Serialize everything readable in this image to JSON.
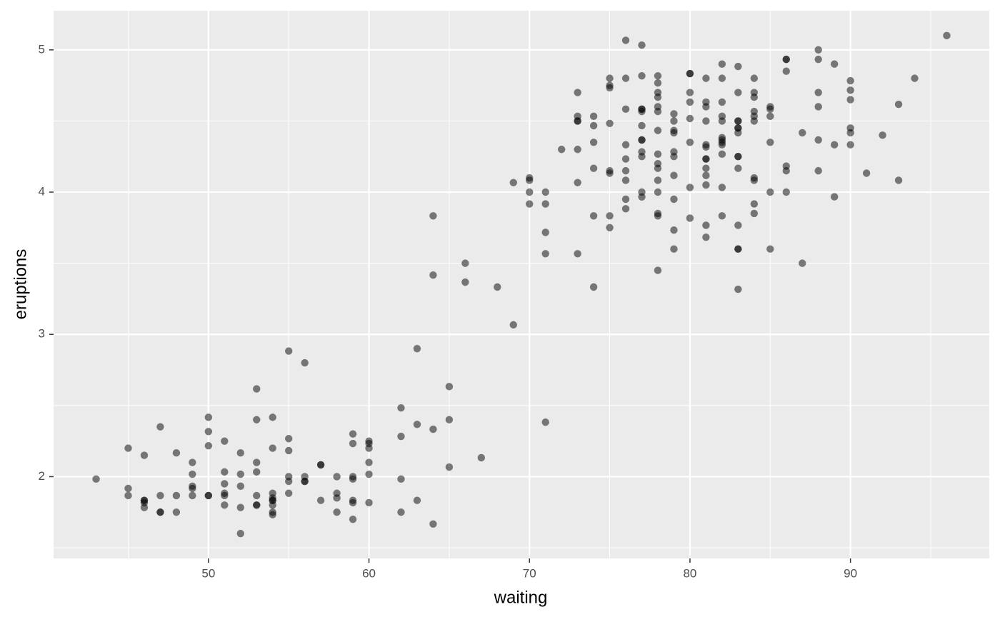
{
  "chart_data": {
    "type": "scatter",
    "x_label": "waiting",
    "y_label": "eruptions",
    "color": "#000000",
    "alpha": 0.5,
    "grid": true,
    "xlim": [
      40.35,
      98.65
    ],
    "ylim": [
      1.425,
      5.275
    ],
    "xticks": [
      50,
      60,
      70,
      80,
      90
    ],
    "yticks": [
      2,
      3,
      4,
      5
    ],
    "xminorticks": [
      45,
      55,
      65,
      75,
      85,
      95
    ],
    "yminorticks": [
      1.5,
      2.5,
      3.5,
      4.5
    ],
    "x": [
      79,
      54,
      74,
      62,
      85,
      55,
      88,
      85,
      51,
      85,
      54,
      84,
      78,
      47,
      83,
      52,
      62,
      84,
      52,
      79,
      51,
      47,
      78,
      69,
      74,
      83,
      55,
      76,
      78,
      79,
      73,
      77,
      66,
      80,
      74,
      52,
      48,
      80,
      59,
      90,
      80,
      58,
      84,
      58,
      73,
      83,
      64,
      53,
      82,
      59,
      75,
      90,
      54,
      80,
      54,
      83,
      71,
      64,
      77,
      81,
      59,
      84,
      48,
      82,
      60,
      92,
      78,
      78,
      65,
      73,
      82,
      56,
      79,
      71,
      62,
      76,
      60,
      78,
      76,
      83,
      75,
      82,
      70,
      65,
      73,
      88,
      76,
      80,
      48,
      86,
      60,
      90,
      50,
      78,
      63,
      72,
      84,
      75,
      51,
      82,
      62,
      88,
      49,
      83,
      81,
      47,
      84,
      52,
      86,
      81,
      75,
      59,
      89,
      79,
      59,
      81,
      50,
      85,
      59,
      87,
      53,
      69,
      77,
      56,
      88,
      81,
      45,
      82,
      55,
      90,
      45,
      83,
      56,
      89,
      46,
      82,
      51,
      86,
      53,
      79,
      81,
      60,
      82,
      77,
      76,
      59,
      80,
      49,
      96,
      53,
      77,
      77,
      65,
      81,
      71,
      70,
      81,
      93,
      53,
      89,
      45,
      86,
      58,
      78,
      66,
      76,
      63,
      88,
      52,
      93,
      49,
      57,
      77,
      68,
      81,
      81,
      73,
      50,
      85,
      74,
      55,
      77,
      83,
      83,
      51,
      78,
      84,
      46,
      83,
      55,
      81,
      57,
      76,
      84,
      77,
      81,
      87,
      77,
      51,
      78,
      60,
      82,
      91,
      53,
      78,
      46,
      77,
      84,
      49,
      83,
      71,
      80,
      49,
      75,
      64,
      76,
      53,
      94,
      55,
      76,
      50,
      82,
      54,
      75,
      78,
      79,
      78,
      78,
      70,
      79,
      70,
      54,
      86,
      50,
      90,
      54,
      54,
      77,
      79,
      64,
      75,
      47,
      86,
      63,
      85,
      82,
      57,
      82,
      67,
      74,
      54,
      83,
      73,
      73,
      88,
      80,
      71,
      83,
      56,
      79,
      78,
      84,
      58,
      83,
      43,
      60,
      75,
      81,
      46,
      90,
      46,
      74
    ],
    "values": [
      3.6,
      1.8,
      3.333,
      2.283,
      4.533,
      2.883,
      4.7,
      3.6,
      1.95,
      4.35,
      1.833,
      3.917,
      4.2,
      1.75,
      4.7,
      2.167,
      1.75,
      4.8,
      1.6,
      4.25,
      1.8,
      1.75,
      3.45,
      3.067,
      4.533,
      3.6,
      1.967,
      4.083,
      3.85,
      4.433,
      4.3,
      4.467,
      3.367,
      4.033,
      3.833,
      2.017,
      1.867,
      4.833,
      1.833,
      4.783,
      4.35,
      1.883,
      4.567,
      1.75,
      4.533,
      3.317,
      3.833,
      2.1,
      4.633,
      2,
      4.8,
      4.716,
      1.833,
      4.833,
      1.733,
      4.883,
      3.717,
      1.667,
      4.567,
      4.317,
      2.233,
      4.5,
      1.75,
      4.8,
      1.817,
      4.4,
      4.167,
      4.7,
      2.067,
      4.7,
      4.033,
      1.967,
      4.5,
      4,
      1.983,
      5.067,
      2.017,
      4.567,
      3.883,
      3.6,
      4.133,
      4.333,
      4.1,
      2.633,
      4.067,
      4.933,
      3.95,
      4.517,
      2.167,
      4,
      2.2,
      4.333,
      1.867,
      4.817,
      1.833,
      4.3,
      4.667,
      3.75,
      1.867,
      4.9,
      2.483,
      4.367,
      2.1,
      4.5,
      4.05,
      1.867,
      4.7,
      1.783,
      4.85,
      3.683,
      4.733,
      2.3,
      4.9,
      4.417,
      1.7,
      4.633,
      2.317,
      4.6,
      1.817,
      4.417,
      2.617,
      4.067,
      4.25,
      1.967,
      4.6,
      3.767,
      1.917,
      4.5,
      2.267,
      4.65,
      1.867,
      4.167,
      2.8,
      4.333,
      1.833,
      4.383,
      1.883,
      4.933,
      2.033,
      3.733,
      4.233,
      2.233,
      4.533,
      4.817,
      4.333,
      1.983,
      4.633,
      2.017,
      5.1,
      1.8,
      5.033,
      4,
      2.4,
      4.6,
      3.567,
      4,
      4.5,
      4.083,
      1.8,
      3.967,
      2.2,
      4.15,
      2,
      3.833,
      3.5,
      4.583,
      2.367,
      5,
      1.933,
      4.617,
      1.917,
      2.083,
      4.583,
      3.333,
      4.167,
      4.333,
      4.5,
      2.417,
      4,
      4.167,
      1.883,
      4.583,
      4.25,
      3.767,
      2.033,
      4.433,
      4.083,
      1.833,
      4.417,
      2.183,
      4.8,
      1.833,
      4.8,
      4.1,
      3.966,
      4.233,
      3.5,
      4.366,
      2.25,
      4.667,
      2.1,
      4.35,
      4.133,
      1.867,
      4.6,
      1.783,
      4.367,
      3.85,
      1.933,
      4.5,
      2.383,
      4.7,
      1.867,
      3.833,
      3.417,
      4.233,
      2.4,
      4.8,
      2,
      4.15,
      1.867,
      4.267,
      1.75,
      4.483,
      4,
      4.117,
      4.083,
      4.267,
      3.917,
      4.55,
      4.083,
      2.417,
      4.183,
      2.217,
      4.45,
      1.883,
      1.85,
      4.283,
      3.95,
      2.333,
      4.15,
      2.35,
      4.933,
      2.9,
      4.583,
      3.833,
      2.083,
      4.367,
      2.133,
      4.35,
      2.2,
      4.45,
      3.567,
      4.5,
      4.15,
      3.817,
      3.917,
      4.45,
      2,
      4.283,
      4.767,
      4.533,
      1.85,
      4.25,
      1.983,
      2.25,
      4.75,
      4.117,
      2.15,
      4.417,
      1.817,
      4.467
    ]
  }
}
